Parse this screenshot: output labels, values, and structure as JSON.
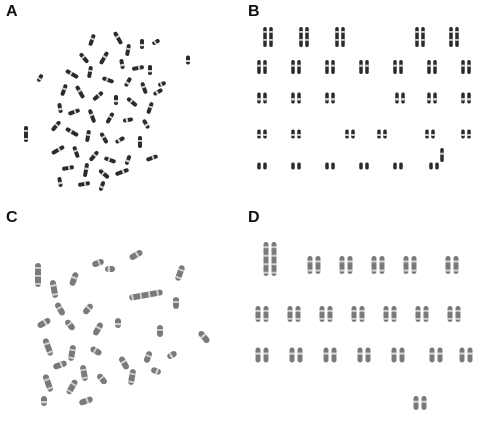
{
  "panels": [
    {
      "id": "A",
      "label": "A"
    },
    {
      "id": "B",
      "label": "B"
    },
    {
      "id": "C",
      "label": "C"
    },
    {
      "id": "D",
      "label": "D"
    }
  ],
  "colors": {
    "background": "#ffffff",
    "chromosome_dark": "#2b2b2b",
    "chromosome_gray": "#7a7a7a",
    "band_light": "#d0d0d0"
  }
}
